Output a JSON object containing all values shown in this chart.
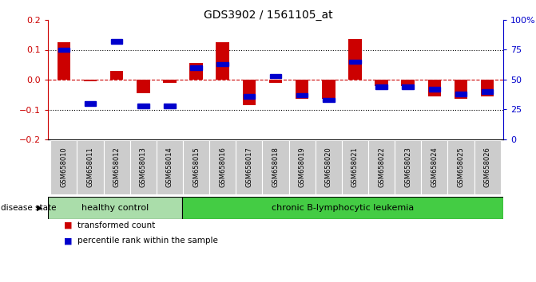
{
  "title": "GDS3902 / 1561105_at",
  "samples": [
    "GSM658010",
    "GSM658011",
    "GSM658012",
    "GSM658013",
    "GSM658014",
    "GSM658015",
    "GSM658016",
    "GSM658017",
    "GSM658018",
    "GSM658019",
    "GSM658020",
    "GSM658021",
    "GSM658022",
    "GSM658023",
    "GSM658024",
    "GSM658025",
    "GSM658026"
  ],
  "red_values": [
    0.125,
    -0.005,
    0.03,
    -0.045,
    -0.01,
    0.055,
    0.125,
    -0.085,
    -0.01,
    -0.065,
    -0.065,
    0.135,
    -0.02,
    -0.02,
    -0.055,
    -0.065,
    -0.055
  ],
  "blue_values_pct": [
    75,
    30,
    82,
    28,
    28,
    60,
    63,
    36,
    53,
    37,
    33,
    65,
    44,
    44,
    42,
    38,
    40
  ],
  "healthy_count": 5,
  "disease_label_healthy": "healthy control",
  "disease_label_leukemia": "chronic B-lymphocytic leukemia",
  "disease_state_label": "disease state",
  "legend_red": "transformed count",
  "legend_blue": "percentile rank within the sample",
  "ylim_left": [
    -0.2,
    0.2
  ],
  "ylim_right": [
    0,
    100
  ],
  "yticks_left": [
    -0.2,
    -0.1,
    0.0,
    0.1,
    0.2
  ],
  "yticks_right": [
    0,
    25,
    50,
    75,
    100
  ],
  "ytick_labels_right": [
    "0",
    "25",
    "50",
    "75",
    "100%"
  ],
  "bar_color": "#cc0000",
  "blue_color": "#0000cc",
  "zero_line_color": "#cc0000",
  "grid_color": "#000000",
  "healthy_bg": "#aaddaa",
  "leukemia_bg": "#44cc44",
  "xlabel_area_bg": "#cccccc",
  "bar_width": 0.5,
  "figsize": [
    6.71,
    3.54
  ],
  "dpi": 100
}
